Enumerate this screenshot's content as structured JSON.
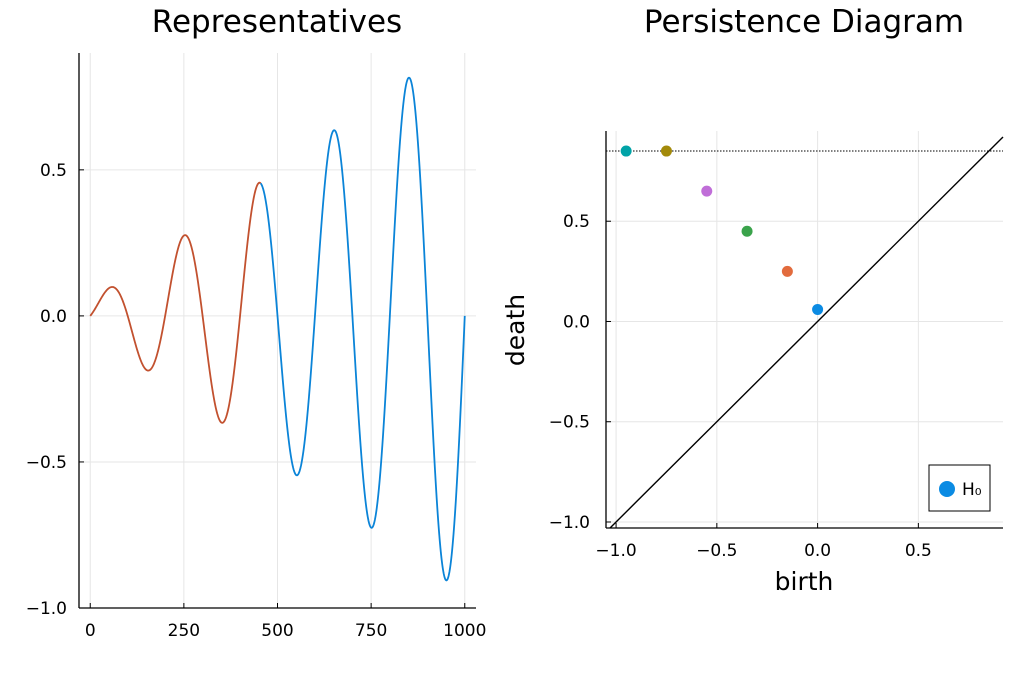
{
  "chart_data": [
    {
      "type": "line",
      "title": "Representatives",
      "xlabel": "",
      "ylabel": "",
      "xlim": [
        -30,
        1030
      ],
      "ylim": [
        -1.0,
        0.9
      ],
      "xticks": [
        0,
        250,
        500,
        750,
        1000
      ],
      "xtick_labels": [
        "0",
        "250",
        "500",
        "750",
        "1000"
      ],
      "yticks": [
        -1.0,
        -0.5,
        0.0,
        0.5
      ],
      "ytick_labels": [
        "−1.0",
        "−0.5",
        "0.0",
        "0.5"
      ],
      "grid": true,
      "curve": {
        "description_formula": "y = (0.05 + 0.0009*x) * sin(2*pi*x/200)",
        "x_range": [
          0,
          1000
        ],
        "segments": [
          {
            "x_range": [
              0,
              455
            ],
            "color": "#c2512f"
          },
          {
            "x_range": [
              455,
              1000
            ],
            "color": "#0b84d8"
          }
        ],
        "extrema": [
          {
            "x": 65,
            "y": 0.055
          },
          {
            "x": 155,
            "y": -0.15
          },
          {
            "x": 255,
            "y": 0.25
          },
          {
            "x": 355,
            "y": -0.35
          },
          {
            "x": 455,
            "y": 0.45
          },
          {
            "x": 555,
            "y": -0.55
          },
          {
            "x": 655,
            "y": 0.65
          },
          {
            "x": 755,
            "y": -0.75
          },
          {
            "x": 855,
            "y": 0.85
          },
          {
            "x": 955,
            "y": -0.95
          }
        ]
      }
    },
    {
      "type": "scatter",
      "title": "Persistence Diagram",
      "xlabel": "birth",
      "ylabel": "death",
      "xlim": [
        -1.05,
        0.92
      ],
      "ylim": [
        -1.03,
        0.95
      ],
      "xticks": [
        -1.0,
        -0.5,
        0.0,
        0.5
      ],
      "xtick_labels": [
        "−1.0",
        "−0.5",
        "0.0",
        "0.5"
      ],
      "yticks": [
        -1.0,
        -0.5,
        0.0,
        0.5
      ],
      "ytick_labels": [
        "−1.0",
        "−0.5",
        "0.0",
        "0.5"
      ],
      "grid": true,
      "infinity_line_y": 0.85,
      "diagonal": true,
      "points": [
        {
          "x": -0.95,
          "y": 0.85,
          "color": "#00a3a7"
        },
        {
          "x": -0.75,
          "y": 0.85,
          "color": "#a38a0a"
        },
        {
          "x": -0.55,
          "y": 0.65,
          "color": "#c06ed8"
        },
        {
          "x": -0.35,
          "y": 0.45,
          "color": "#3aa34b"
        },
        {
          "x": -0.15,
          "y": 0.25,
          "color": "#e26b3d"
        },
        {
          "x": 0.0,
          "y": 0.06,
          "color": "#0b8be3"
        }
      ],
      "legend": {
        "placement": "bottom-right",
        "entries": [
          {
            "name": "H₀",
            "color": "#0b8be3"
          }
        ]
      }
    }
  ]
}
